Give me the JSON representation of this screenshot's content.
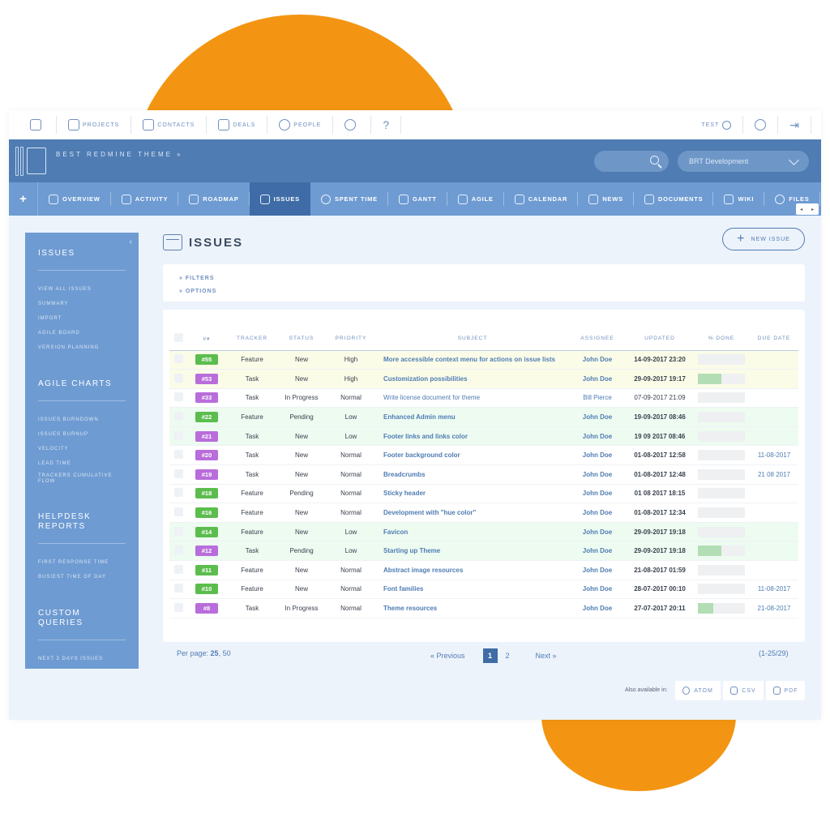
{
  "topbar": {
    "items": [
      {
        "label": ""
      },
      {
        "label": "PROJECTS"
      },
      {
        "label": "CONTACTS"
      },
      {
        "label": "DEALS"
      },
      {
        "label": "PEOPLE"
      },
      {
        "label": ""
      },
      {
        "label": "?"
      }
    ],
    "user_label": "TEST",
    "exit_glyph": "⇥"
  },
  "header": {
    "theme_name": "BEST REDMINE THEME »",
    "project_select": "BRT Development"
  },
  "mainnav": {
    "plus": "+",
    "items": [
      {
        "label": "OVERVIEW"
      },
      {
        "label": "ACTIVITY"
      },
      {
        "label": "ROADMAP"
      },
      {
        "label": "ISSUES"
      },
      {
        "label": "SPENT TIME"
      },
      {
        "label": "GANTT"
      },
      {
        "label": "AGILE"
      },
      {
        "label": "CALENDAR"
      },
      {
        "label": "NEWS"
      },
      {
        "label": "DOCUMENTS"
      },
      {
        "label": "WIKI"
      },
      {
        "label": "FILES"
      }
    ],
    "arrows": [
      "◂",
      "▸"
    ]
  },
  "sidebar": {
    "collapse": "‹",
    "sections": [
      {
        "title": "ISSUES",
        "links": [
          "VIEW ALL ISSUES",
          "SUMMARY",
          "IMPORT",
          "AGILE BOARD",
          "VERSION PLANNING"
        ]
      },
      {
        "title": "AGILE CHARTS",
        "links": [
          "ISSUES BURNDOWN",
          "ISSUES BURNUP",
          "VELOCITY",
          "LEAD TIME",
          "TRACKERS CUMULATIVE FLOW"
        ]
      },
      {
        "title": "HELPDESK REPORTS",
        "links": [
          "FIRST RESPONSE TIME",
          "BUSIEST TIME OF DAY"
        ]
      },
      {
        "title": "CUSTOM QUERIES",
        "links": [
          "NEXT 3 DAYS ISSUES"
        ]
      }
    ]
  },
  "page": {
    "title": "ISSUES",
    "new_issue": "NEW ISSUE",
    "new_issue_plus": "+",
    "filters": "» FILTERS",
    "options": "» OPTIONS"
  },
  "table": {
    "headers": [
      "#",
      "TRACKER",
      "STATUS",
      "PRIORITY",
      "SUBJECT",
      "ASSIGNEE",
      "UPDATED",
      "% DONE",
      "DUE DATE"
    ],
    "sort_glyph": "▾",
    "rows": [
      {
        "id": "#55",
        "tracker": "Feature",
        "status": "New",
        "priority": "High",
        "subject": "More accessible context menu for actions on issue lists",
        "assignee": "John Doe",
        "updated": "14-09-2017 23:20",
        "done": 0,
        "due": "",
        "bg": "yellow"
      },
      {
        "id": "#53",
        "tracker": "Task",
        "status": "New",
        "priority": "High",
        "subject": "Customization possibilities",
        "assignee": "John Doe",
        "updated": "29-09-2017 19:17",
        "done": 50,
        "due": "",
        "bg": "yellow"
      },
      {
        "id": "#33",
        "tracker": "Task",
        "status": "In Progress",
        "priority": "Normal",
        "subject": "Write license document for theme",
        "assignee": "Bill Pierce",
        "updated": "07-09-2017 21:09",
        "done": 0,
        "due": "",
        "bg": "white"
      },
      {
        "id": "#22",
        "tracker": "Feature",
        "status": "Pending",
        "priority": "Low",
        "subject": "Enhanced Admin menu",
        "assignee": "John Doe",
        "updated": "19-09-2017 08:46",
        "done": 0,
        "due": "",
        "bg": "green"
      },
      {
        "id": "#21",
        "tracker": "Task",
        "status": "New",
        "priority": "Low",
        "subject": "Footer links and links color",
        "assignee": "John Doe",
        "updated": "19 09 2017 08:46",
        "done": 0,
        "due": "",
        "bg": "green"
      },
      {
        "id": "#20",
        "tracker": "Task",
        "status": "New",
        "priority": "Normal",
        "subject": "Footer background color",
        "assignee": "John Doe",
        "updated": "01-08-2017 12:58",
        "done": 0,
        "due": "11-08-2017",
        "bg": "white"
      },
      {
        "id": "#19",
        "tracker": "Task",
        "status": "New",
        "priority": "Normal",
        "subject": "Breadcrumbs",
        "assignee": "John Doe",
        "updated": "01-08-2017 12:48",
        "done": 0,
        "due": "21 08 2017",
        "bg": "white"
      },
      {
        "id": "#18",
        "tracker": "Feature",
        "status": "Pending",
        "priority": "Normal",
        "subject": "Sticky header",
        "assignee": "John Doe",
        "updated": "01 08 2017 18:15",
        "done": 0,
        "due": "",
        "bg": "white"
      },
      {
        "id": "#16",
        "tracker": "Feature",
        "status": "New",
        "priority": "Normal",
        "subject": "Development with \"hue color\"",
        "assignee": "John Doe",
        "updated": "01-08-2017 12:34",
        "done": 0,
        "due": "",
        "bg": "white"
      },
      {
        "id": "#14",
        "tracker": "Feature",
        "status": "New",
        "priority": "Low",
        "subject": "Favicon",
        "assignee": "John Doe",
        "updated": "29-09-2017 19:18",
        "done": 0,
        "due": "",
        "bg": "green"
      },
      {
        "id": "#12",
        "tracker": "Task",
        "status": "Pending",
        "priority": "Low",
        "subject": "Starting up Theme",
        "assignee": "John Doe",
        "updated": "29-09-2017 19:18",
        "done": 50,
        "due": "",
        "bg": "green"
      },
      {
        "id": "#11",
        "tracker": "Feature",
        "status": "New",
        "priority": "Normal",
        "subject": "Abstract image resources",
        "assignee": "John Doe",
        "updated": "21-08-2017 01:59",
        "done": 0,
        "due": "",
        "bg": "white"
      },
      {
        "id": "#10",
        "tracker": "Feature",
        "status": "New",
        "priority": "Normal",
        "subject": "Font families",
        "assignee": "John Doe",
        "updated": "28-07-2017 00:10",
        "done": 0,
        "due": "11-08-2017",
        "bg": "white"
      },
      {
        "id": "#8",
        "tracker": "Task",
        "status": "In Progress",
        "priority": "Normal",
        "subject": "Theme resources",
        "assignee": "John Doe",
        "updated": "27-07-2017 20:11",
        "done": 33,
        "due": "21-08-2017",
        "bg": "white"
      }
    ]
  },
  "footer": {
    "per_page_label": "Per page:",
    "per_page_current": "25",
    "per_page_other": ", 50",
    "prev": "« Previous",
    "current_page": "1",
    "page2": "2",
    "next": "Next »",
    "count": "(1-25/29)",
    "also_available": "Also available in:",
    "formats": [
      "ATOM",
      "CSV",
      "PDF"
    ]
  },
  "colors": {
    "accent_orange": "#f39512",
    "header_blue": "#4f7cb3",
    "nav_blue": "#6e9bd2",
    "feature_green": "#5cbd4e",
    "task_purple": "#b86ddb"
  }
}
